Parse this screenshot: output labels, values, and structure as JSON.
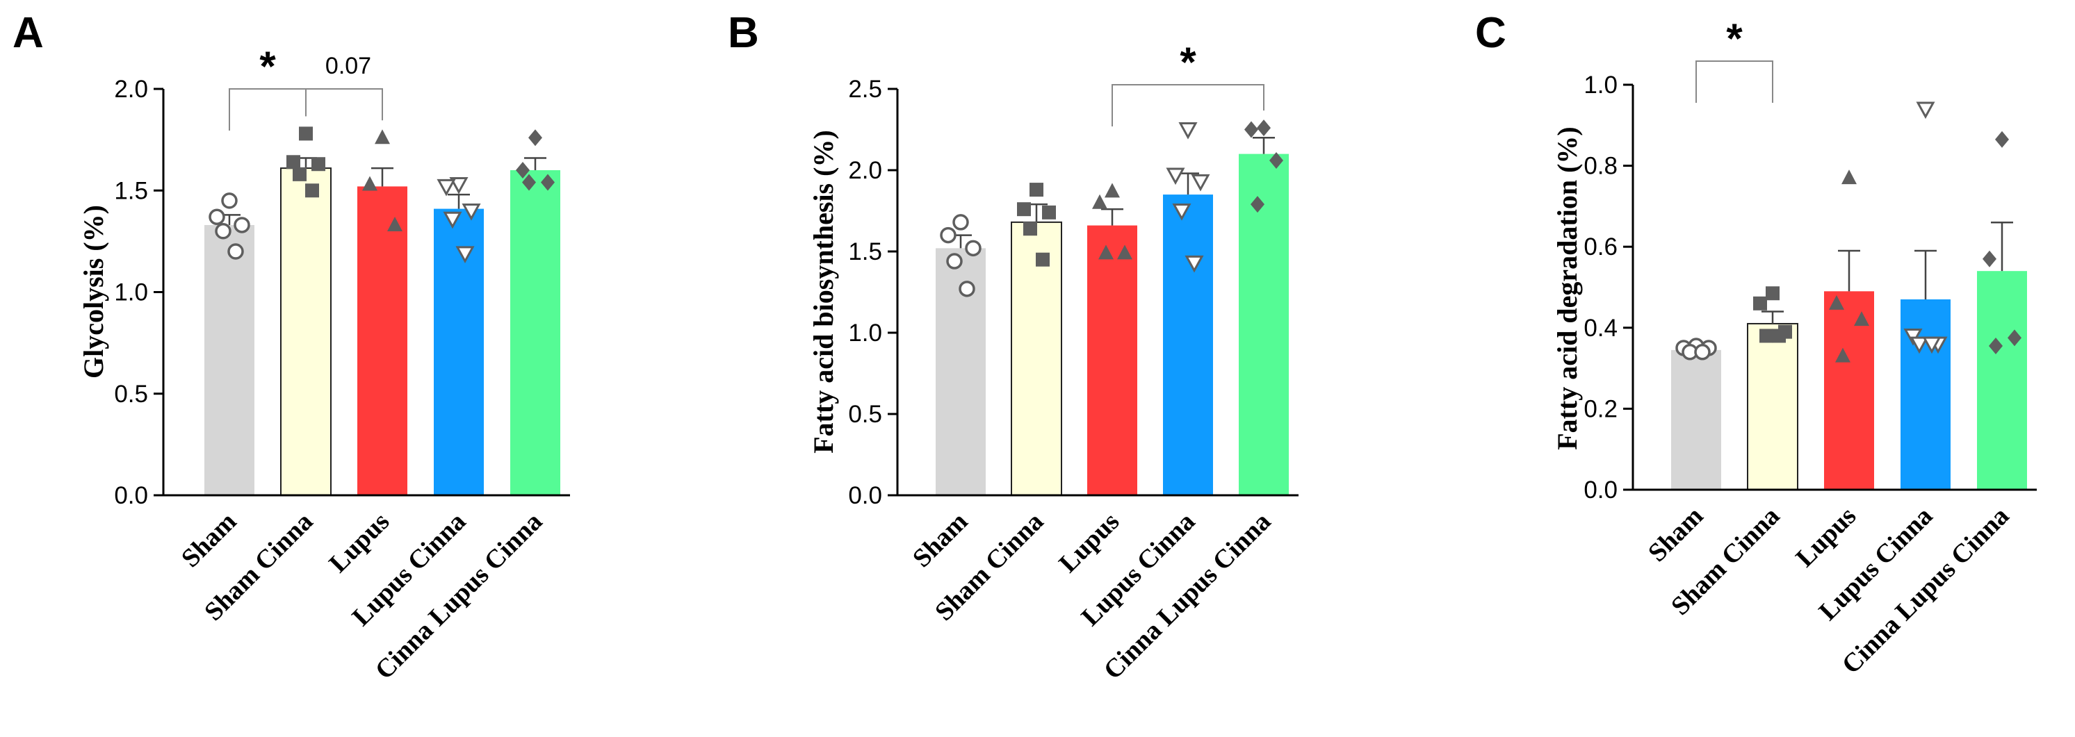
{
  "categories": [
    "Sham",
    "Sham Cinna",
    "Lupus",
    "Lupus Cinna",
    "Cinna Lupus Cinna"
  ],
  "colors": {
    "Sham": "#d6d6d6",
    "Sham Cinna": "#ffffdc",
    "Lupus": "#ff3b3b",
    "Lupus Cinna": "#0f9bff",
    "Cinna Lupus Cinna": "#55fb95",
    "points": "#5e5e5e",
    "axis": "#000000"
  },
  "markers": {
    "Sham": "open-circle",
    "Sham Cinna": "square",
    "Lupus": "triangle-up",
    "Lupus Cinna": "open-triangle-down",
    "Cinna Lupus Cinna": "diamond"
  },
  "chart_data": [
    {
      "type": "bar",
      "panel": "A",
      "title": "",
      "xlabel": "",
      "ylabel": "Glycolysis (%)",
      "ylim": [
        0,
        2.0
      ],
      "yticks": [
        "0.0",
        "0.5",
        "1.0",
        "1.5",
        "2.0"
      ],
      "categories": [
        "Sham",
        "Sham Cinna",
        "Lupus",
        "Lupus Cinna",
        "Cinna Lupus Cinna"
      ],
      "values": [
        1.33,
        1.61,
        1.52,
        1.41,
        1.6
      ],
      "sem": [
        0.05,
        0.05,
        0.09,
        0.07,
        0.06
      ],
      "points": [
        [
          1.45,
          1.37,
          1.33,
          1.3,
          1.2
        ],
        [
          1.78,
          1.64,
          1.63,
          1.58,
          1.5
        ],
        [
          1.76,
          1.53,
          1.33
        ],
        [
          1.53,
          1.52,
          1.4,
          1.36,
          1.19
        ],
        [
          1.76,
          1.6,
          1.54,
          1.54
        ]
      ],
      "annotations": [
        {
          "from": 0,
          "to": 1,
          "label": "*"
        },
        {
          "from": 1,
          "to": 2,
          "label": "0.07"
        }
      ]
    },
    {
      "type": "bar",
      "panel": "B",
      "title": "",
      "xlabel": "",
      "ylabel": "Fatty acid biosynthesis  (%)",
      "ylim": [
        0,
        2.5
      ],
      "yticks": [
        "0.0",
        "0.5",
        "1.0",
        "1.5",
        "2.0",
        "2.5"
      ],
      "categories": [
        "Sham",
        "Sham Cinna",
        "Lupus",
        "Lupus Cinna",
        "Cinna Lupus Cinna"
      ],
      "values": [
        1.52,
        1.68,
        1.66,
        1.85,
        2.1
      ],
      "sem": [
        0.08,
        0.11,
        0.1,
        0.13,
        0.1
      ],
      "points": [
        [
          1.68,
          1.6,
          1.52,
          1.44,
          1.27
        ],
        [
          1.88,
          1.76,
          1.74,
          1.64,
          1.45
        ],
        [
          1.87,
          1.8,
          1.49,
          1.49
        ],
        [
          2.25,
          1.97,
          1.93,
          1.75,
          1.43
        ],
        [
          2.26,
          2.25,
          2.06,
          1.79
        ]
      ],
      "annotations": [
        {
          "from": 2,
          "to": 4,
          "label": "*"
        }
      ]
    },
    {
      "type": "bar",
      "panel": "C",
      "title": "",
      "xlabel": "",
      "ylabel": "Fatty acid degradation  (%)",
      "ylim": [
        0,
        1.0
      ],
      "yticks": [
        "0.0",
        "0.2",
        "0.4",
        "0.6",
        "0.8",
        "1.0"
      ],
      "categories": [
        "Sham",
        "Sham Cinna",
        "Lupus",
        "Lupus Cinna",
        "Cinna Lupus Cinna"
      ],
      "values": [
        0.345,
        0.41,
        0.49,
        0.47,
        0.54
      ],
      "sem": [
        0.008,
        0.03,
        0.1,
        0.12,
        0.12
      ],
      "points": [
        [
          0.355,
          0.35,
          0.35,
          0.34,
          0.34
        ],
        [
          0.485,
          0.46,
          0.39,
          0.38,
          0.38
        ],
        [
          0.77,
          0.46,
          0.42,
          0.33
        ],
        [
          0.94,
          0.38,
          0.36,
          0.36,
          0.36
        ],
        [
          0.865,
          0.57,
          0.375,
          0.355
        ]
      ],
      "annotations": [
        {
          "from": 0,
          "to": 1,
          "label": "*"
        }
      ]
    }
  ]
}
